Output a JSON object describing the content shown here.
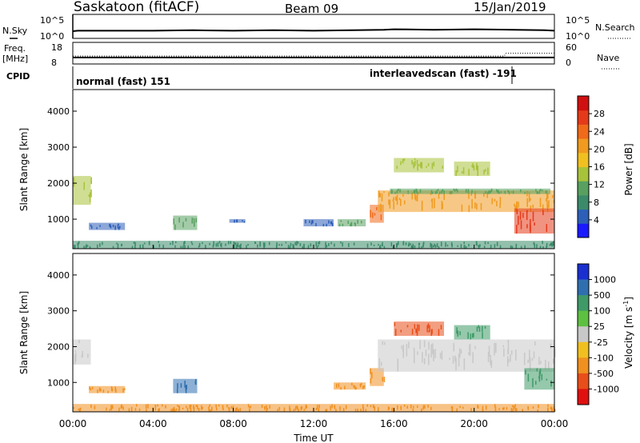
{
  "chart_data": [
    {
      "type": "line",
      "panel": "noise",
      "left_labels": [
        "N.Sky"
      ],
      "right_label": "N.Search",
      "y_ticks_left": [
        "10^5",
        "10^0"
      ],
      "y_ticks_right": [
        "10^5",
        "10^0"
      ],
      "series": [
        {
          "name": "N.Sky",
          "x_hours": [
            0,
            0.25,
            2,
            4,
            6,
            8,
            10,
            12,
            14,
            15.5,
            16,
            18,
            20,
            22,
            23.5,
            24
          ],
          "values_log10": [
            1.5,
            1.6,
            1.6,
            1.6,
            1.7,
            1.6,
            1.7,
            1.6,
            1.7,
            1.8,
            1.9,
            1.8,
            1.9,
            1.8,
            1.7,
            1.6
          ]
        }
      ]
    },
    {
      "type": "line",
      "panel": "frequency",
      "left_label_top": "Freq.",
      "left_label_bottom": "[MHz]",
      "right_label": "Nave",
      "y_ticks_left": [
        "18",
        "8"
      ],
      "y_ticks_right": [
        "60",
        "0"
      ],
      "series": [
        {
          "name": "Freq",
          "x_hours": [
            0,
            24
          ],
          "values": [
            11,
            11
          ]
        },
        {
          "name": "Nave",
          "x_hours": [
            0,
            21.5,
            21.6,
            24
          ],
          "values": [
            22,
            22,
            30,
            30
          ]
        }
      ]
    },
    {
      "type": "table",
      "panel": "cpid",
      "label": "CPID",
      "segments": [
        {
          "start_hour": 0,
          "end_hour": 21.8,
          "text": "normal (fast) 151"
        },
        {
          "start_hour": 21.8,
          "end_hour": 24,
          "text": "interleavedscan (fast) -191"
        }
      ]
    },
    {
      "type": "heatmap",
      "panel": "power",
      "ylabel": "Slant Range [km]",
      "yticks": [
        1000,
        2000,
        3000,
        4000
      ],
      "ylim": [
        180,
        4600
      ],
      "colorbar_label": "Power [dB]",
      "colorbar_ticks": [
        4,
        8,
        12,
        16,
        20,
        24,
        28
      ],
      "colorbar_range": [
        0,
        32
      ],
      "colors": [
        "#1a1aff",
        "#2d5fb8",
        "#3b8a6a",
        "#58a060",
        "#a8c23a",
        "#f0c020",
        "#f09a20",
        "#f06a1a",
        "#e53a1a",
        "#d01010"
      ],
      "echo_regions": [
        {
          "t0": 0.0,
          "t1": 0.9,
          "r0": 1400,
          "r1": 2200,
          "level": 14
        },
        {
          "t0": 0.8,
          "t1": 2.6,
          "r0": 700,
          "r1": 900,
          "level": 6
        },
        {
          "t0": 5.0,
          "t1": 6.2,
          "r0": 700,
          "r1": 1100,
          "level": 10
        },
        {
          "t0": 7.8,
          "t1": 8.6,
          "r0": 900,
          "r1": 1000,
          "level": 6
        },
        {
          "t0": 11.5,
          "t1": 13.0,
          "r0": 800,
          "r1": 1000,
          "level": 6
        },
        {
          "t0": 13.2,
          "t1": 14.6,
          "r0": 800,
          "r1": 1000,
          "level": 10
        },
        {
          "t0": 14.8,
          "t1": 15.5,
          "r0": 900,
          "r1": 1400,
          "level": 24
        },
        {
          "t0": 15.2,
          "t1": 24.0,
          "r0": 1200,
          "r1": 1800,
          "level": 20
        },
        {
          "t0": 15.8,
          "t1": 23.8,
          "r0": 1700,
          "r1": 1850,
          "level": 12
        },
        {
          "t0": 16.0,
          "t1": 18.5,
          "r0": 2300,
          "r1": 2700,
          "level": 14
        },
        {
          "t0": 19.0,
          "t1": 20.8,
          "r0": 2200,
          "r1": 2600,
          "level": 14
        },
        {
          "t0": 22.0,
          "t1": 24.0,
          "r0": 600,
          "r1": 1300,
          "level": 28
        },
        {
          "t0": 0.0,
          "t1": 24.0,
          "r0": 180,
          "r1": 400,
          "level": 8
        }
      ]
    },
    {
      "type": "heatmap",
      "panel": "velocity",
      "ylabel": "Slant Range [km]",
      "yticks": [
        1000,
        2000,
        3000,
        4000
      ],
      "ylim": [
        180,
        4600
      ],
      "xticks": [
        "00:00",
        "04:00",
        "08:00",
        "12:00",
        "16:00",
        "20:00",
        "00:00"
      ],
      "xlabel": "Time UT",
      "colorbar_label": "Velocity [m s-1]",
      "colorbar_ticks": [
        "1000",
        "500",
        "100",
        "25",
        "-25",
        "-100",
        "-500",
        "-1000"
      ],
      "colors": [
        "#1a2fd0",
        "#2f6fb0",
        "#3f9a68",
        "#5ec040",
        "#c8c8c8",
        "#f0c020",
        "#f09020",
        "#e84e1a",
        "#e01010"
      ],
      "echo_regions": [
        {
          "t0": 0.0,
          "t1": 0.9,
          "r0": 1500,
          "r1": 2200,
          "v": 0
        },
        {
          "t0": 0.8,
          "t1": 2.6,
          "r0": 700,
          "r1": 900,
          "v": -60
        },
        {
          "t0": 5.0,
          "t1": 6.2,
          "r0": 700,
          "r1": 1100,
          "v": 300
        },
        {
          "t0": 13.0,
          "t1": 14.6,
          "r0": 800,
          "r1": 1000,
          "v": -60
        },
        {
          "t0": 14.8,
          "t1": 15.5,
          "r0": 900,
          "r1": 1400,
          "v": -150
        },
        {
          "t0": 15.2,
          "t1": 24.0,
          "r0": 1300,
          "r1": 2200,
          "v": 0
        },
        {
          "t0": 22.5,
          "t1": 24.0,
          "r0": 800,
          "r1": 1400,
          "v": 150
        },
        {
          "t0": 16.0,
          "t1": 18.5,
          "r0": 2300,
          "r1": 2700,
          "v": -300
        },
        {
          "t0": 19.0,
          "t1": 20.8,
          "r0": 2200,
          "r1": 2600,
          "v": 200
        },
        {
          "t0": 0.0,
          "t1": 24.0,
          "r0": 180,
          "r1": 400,
          "v": -80
        }
      ]
    }
  ],
  "header": {
    "station": "Saskatoon (fitACF)",
    "beam": "Beam 09",
    "date": "15/Jan/2019"
  },
  "labels": {
    "nsky": "N.Sky",
    "nsearch": "N.Search",
    "freq_top": "Freq.",
    "freq_bottom": "[MHz]",
    "nave": "Nave",
    "cpid": "CPID",
    "cp1": "normal (fast) 151",
    "cp2": "interleavedscan (fast) -191",
    "slant": "Slant Range [km]",
    "power": "Power [dB]",
    "velocity": "Velocity [m s",
    "velocity_exp": "-1",
    "velocity_close": "]",
    "time": "Time UT"
  },
  "colors": {
    "background": "#ffffff",
    "axis": "#000000",
    "ground_scatter": "#c8c8c8"
  }
}
